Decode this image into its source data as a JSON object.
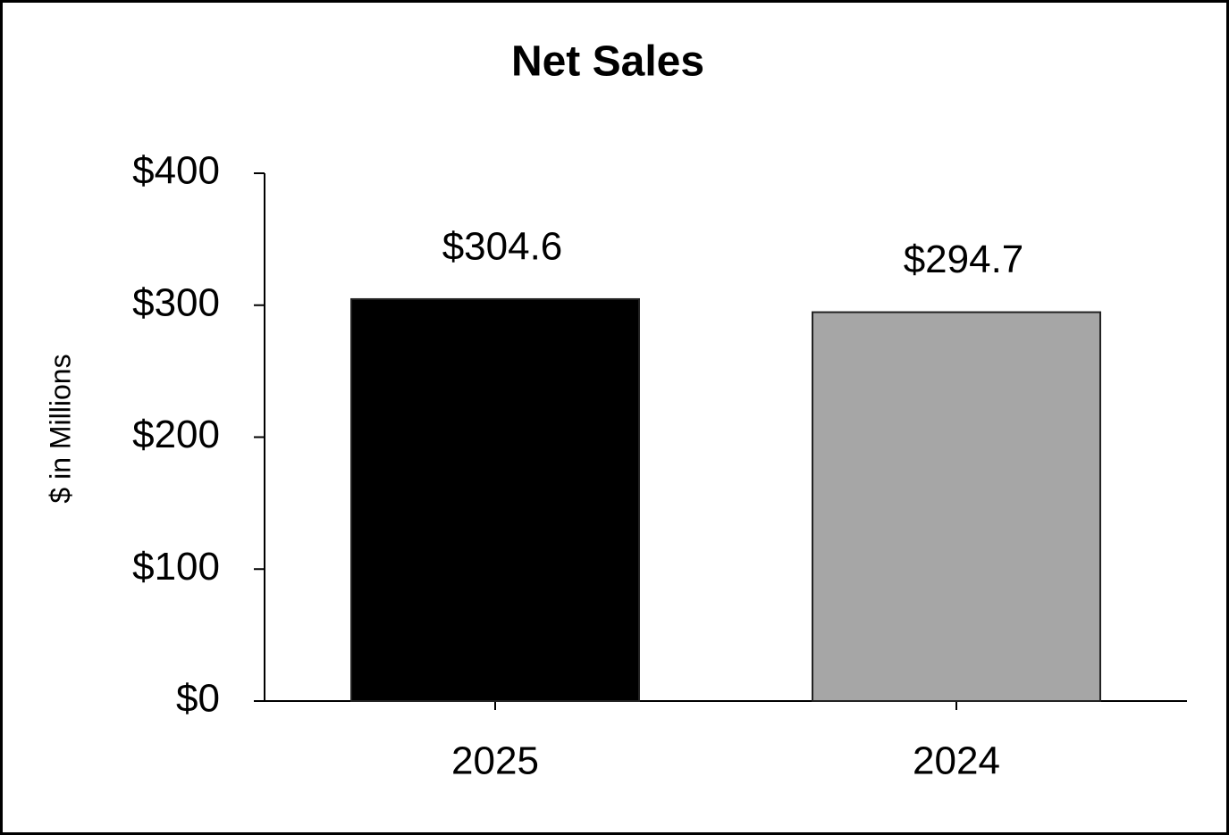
{
  "chart_data": {
    "type": "bar",
    "title": "Net Sales",
    "ylabel": "$ in Millions",
    "categories": [
      "2025",
      "2024"
    ],
    "values": [
      304.6,
      294.7
    ],
    "value_labels": [
      "$304.6",
      "$294.7"
    ],
    "colors": [
      "#000000",
      "#a6a6a6"
    ],
    "ylim": [
      0,
      400
    ],
    "yticks": [
      {
        "value": 0,
        "label": "$0"
      },
      {
        "value": 100,
        "label": "$100"
      },
      {
        "value": 200,
        "label": "$200"
      },
      {
        "value": 300,
        "label": "$300"
      },
      {
        "value": 400,
        "label": "$400"
      }
    ],
    "grid": false
  }
}
